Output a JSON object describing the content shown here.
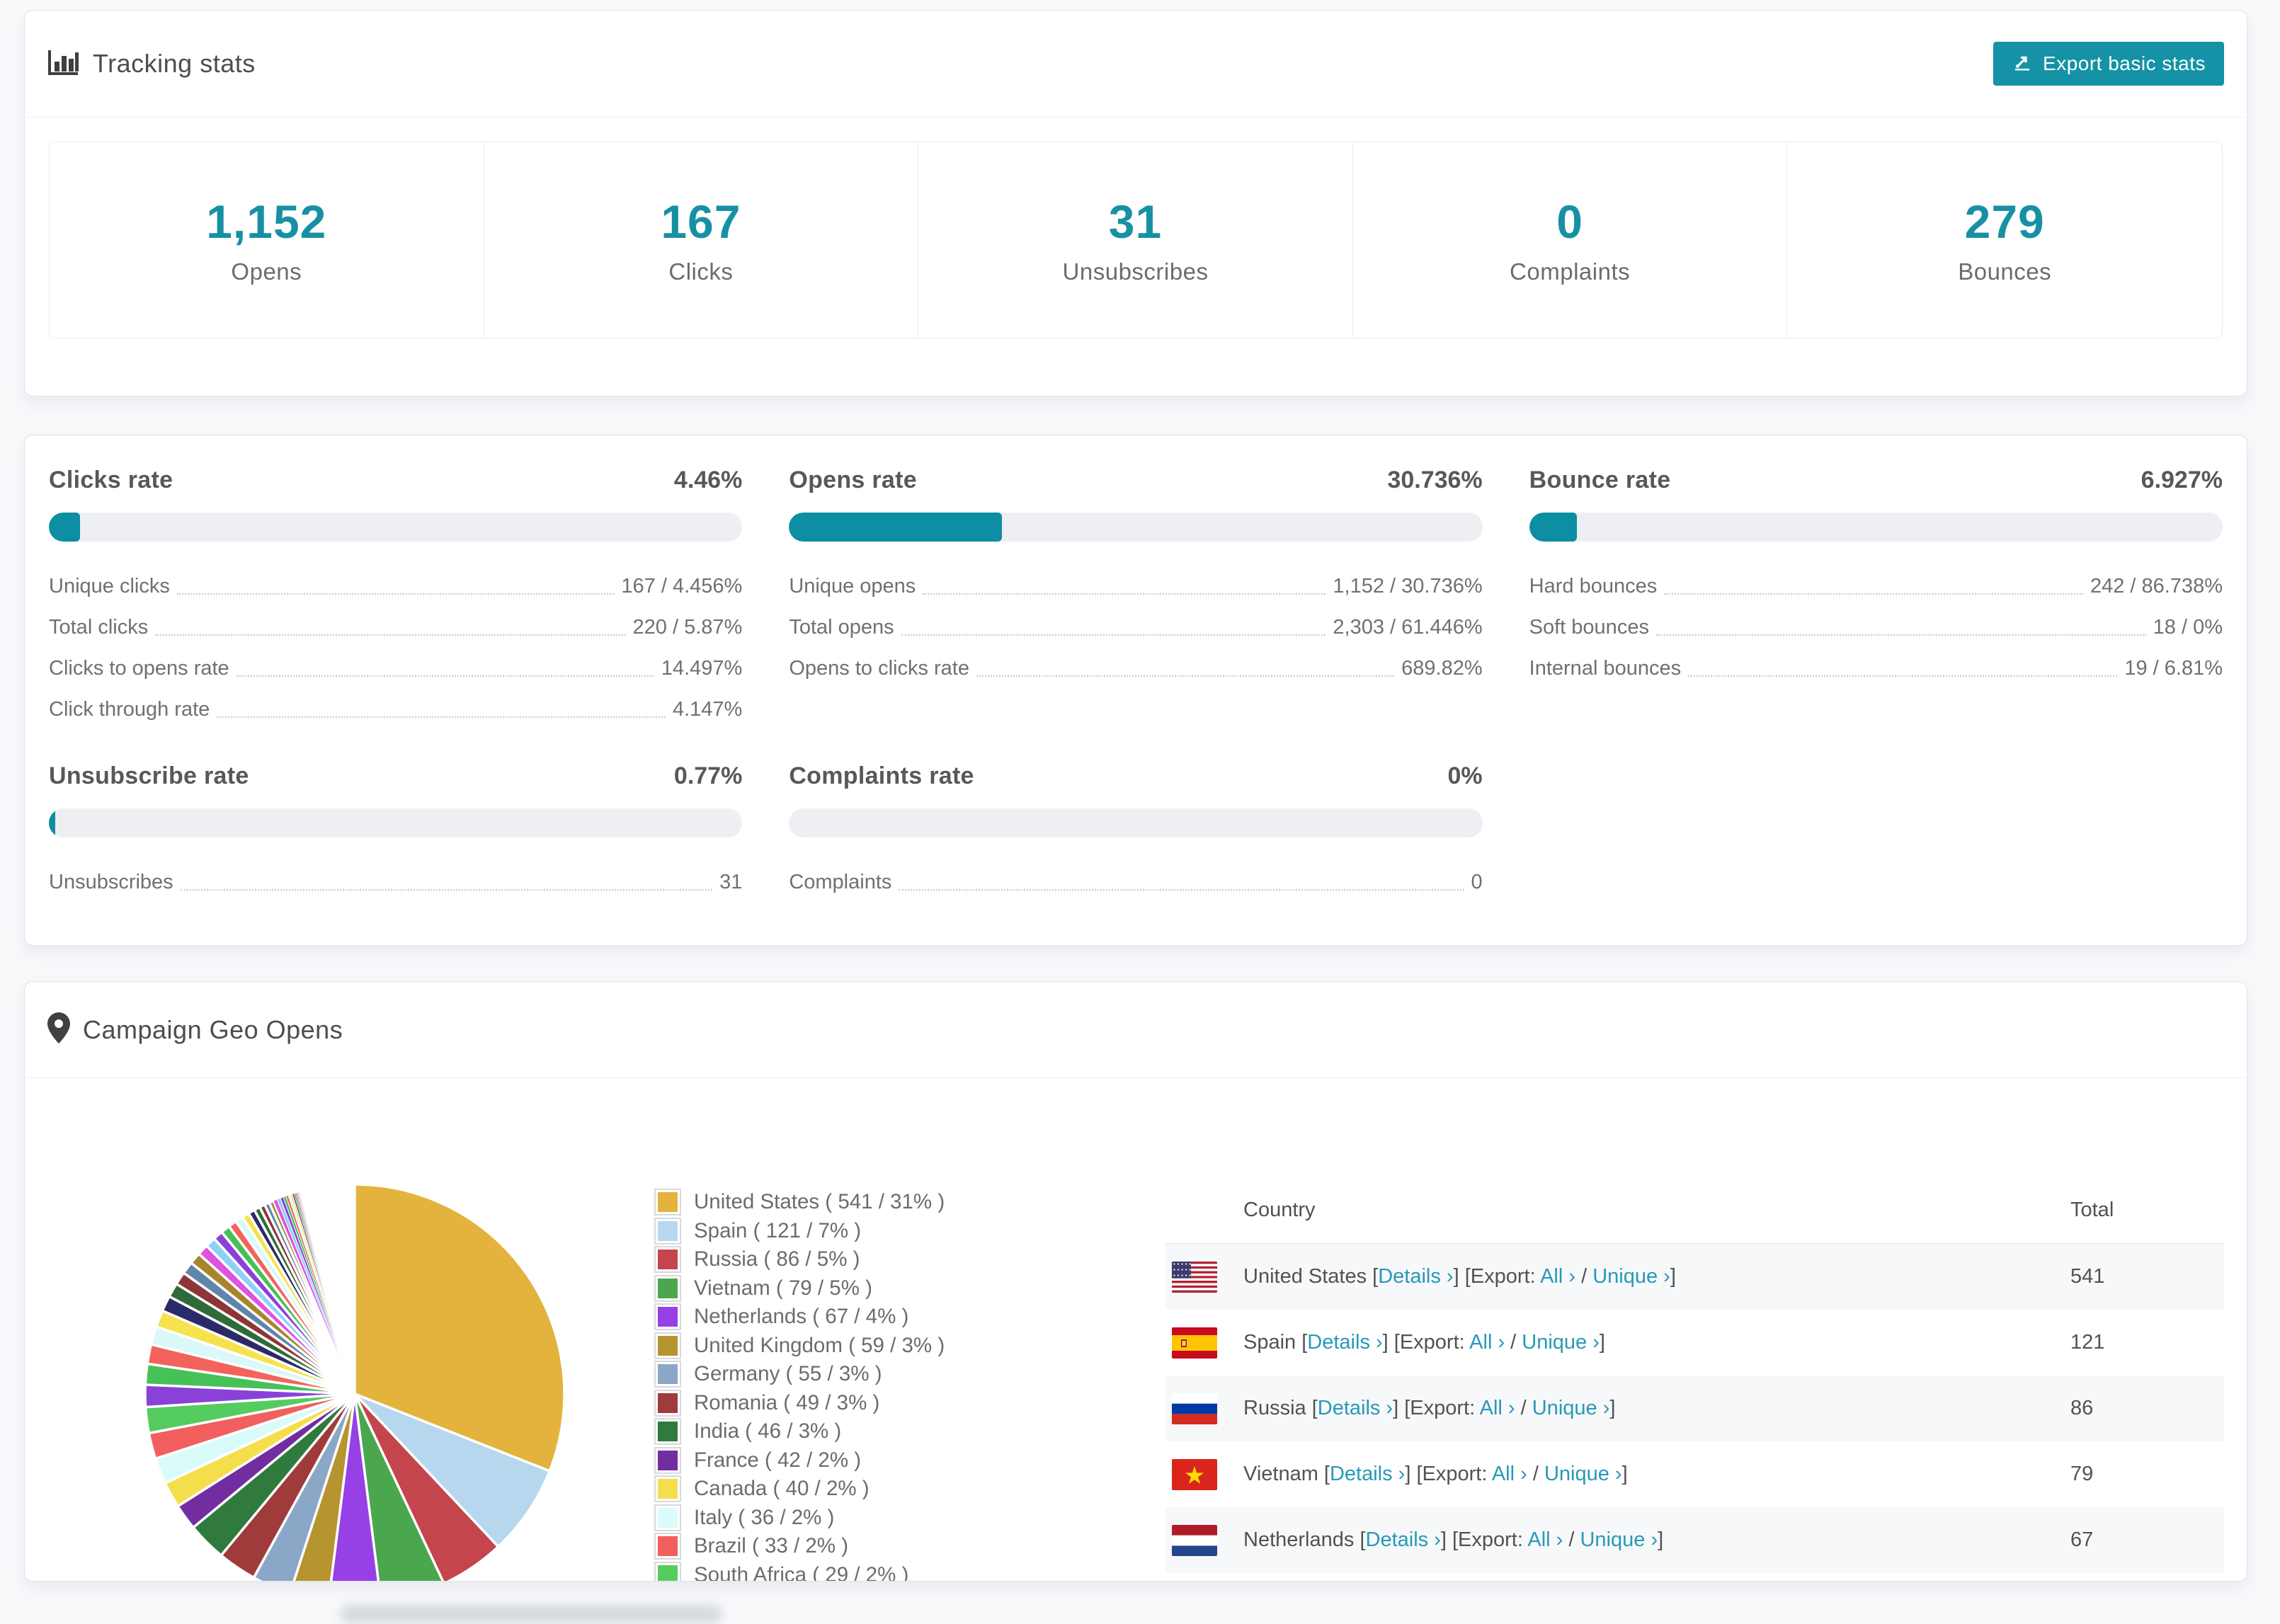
{
  "colors": {
    "accent_teal": "#1592a6",
    "number_teal": "#1790a4",
    "bar_fill": "#0d8ea2",
    "link_teal": "#2799b8",
    "bar_track": "#edeff2",
    "page_bg": "#f8f9fb"
  },
  "tracking": {
    "title": "Tracking stats",
    "export_button": "Export basic stats",
    "stats": [
      {
        "value": "1,152",
        "label": "Opens"
      },
      {
        "value": "167",
        "label": "Clicks"
      },
      {
        "value": "31",
        "label": "Unsubscribes"
      },
      {
        "value": "0",
        "label": "Complaints"
      },
      {
        "value": "279",
        "label": "Bounces"
      }
    ]
  },
  "rates": {
    "blocks": [
      {
        "title": "Clicks rate",
        "value": "4.46%",
        "bar_pct": 4.46,
        "rows": [
          {
            "label": "Unique clicks",
            "value": "167 / 4.456%"
          },
          {
            "label": "Total clicks",
            "value": "220 / 5.87%"
          },
          {
            "label": "Clicks to opens rate",
            "value": "14.497%"
          },
          {
            "label": "Click through rate",
            "value": "4.147%"
          }
        ]
      },
      {
        "title": "Opens rate",
        "value": "30.736%",
        "bar_pct": 30.736,
        "rows": [
          {
            "label": "Unique opens",
            "value": "1,152 / 30.736%"
          },
          {
            "label": "Total opens",
            "value": "2,303 / 61.446%"
          },
          {
            "label": "Opens to clicks rate",
            "value": "689.82%"
          }
        ]
      },
      {
        "title": "Bounce rate",
        "value": "6.927%",
        "bar_pct": 6.927,
        "rows": [
          {
            "label": "Hard bounces",
            "value": "242 / 86.738%"
          },
          {
            "label": "Soft bounces",
            "value": "18 / 0%"
          },
          {
            "label": "Internal bounces",
            "value": "19 / 6.81%"
          }
        ]
      },
      {
        "title": "Unsubscribe rate",
        "value": "0.77%",
        "bar_pct": 0.77,
        "rows": [
          {
            "label": "Unsubscribes",
            "value": "31"
          }
        ]
      },
      {
        "title": "Complaints rate",
        "value": "0%",
        "bar_pct": 0,
        "rows": [
          {
            "label": "Complaints",
            "value": "0"
          }
        ]
      }
    ]
  },
  "geo": {
    "title": "Campaign Geo Opens",
    "table": {
      "headers": {
        "country": "Country",
        "total": "Total"
      },
      "links": {
        "details": "Details ›",
        "export_label": "Export:",
        "all": "All ›",
        "unique": "Unique ›",
        "slash": "/"
      },
      "rows": [
        {
          "country": "United States",
          "flag": "us",
          "total": "541"
        },
        {
          "country": "Spain",
          "flag": "es",
          "total": "121"
        },
        {
          "country": "Russia",
          "flag": "ru",
          "total": "86"
        },
        {
          "country": "Vietnam",
          "flag": "vn",
          "total": "79"
        },
        {
          "country": "Netherlands",
          "flag": "nl",
          "total": "67"
        },
        {
          "country": "United Kingdom",
          "flag": "gb",
          "total": "59"
        },
        {
          "country": "Germany",
          "flag": "de",
          "total": "55"
        }
      ]
    }
  },
  "chart_data": {
    "type": "pie",
    "title": "Campaign Geo Opens",
    "unit": "opens",
    "start_angle": "top",
    "direction": "clockwise",
    "legend_position": "right",
    "series": [
      {
        "name": "United States",
        "value": 541,
        "pct": 31,
        "color": "#e3b33d"
      },
      {
        "name": "Spain",
        "value": 121,
        "pct": 7,
        "color": "#b7d7ef"
      },
      {
        "name": "Russia",
        "value": 86,
        "pct": 5,
        "color": "#c5454d"
      },
      {
        "name": "Vietnam",
        "value": 79,
        "pct": 5,
        "color": "#4aa74e"
      },
      {
        "name": "Netherlands",
        "value": 67,
        "pct": 4,
        "color": "#9640e6"
      },
      {
        "name": "United Kingdom",
        "value": 59,
        "pct": 3,
        "color": "#b6942f"
      },
      {
        "name": "Germany",
        "value": 55,
        "pct": 3,
        "color": "#8ba7c7"
      },
      {
        "name": "Romania",
        "value": 49,
        "pct": 3,
        "color": "#a03b3b"
      },
      {
        "name": "India",
        "value": 46,
        "pct": 3,
        "color": "#2f7a3c"
      },
      {
        "name": "France",
        "value": 42,
        "pct": 2,
        "color": "#722da0"
      },
      {
        "name": "Canada",
        "value": 40,
        "pct": 2,
        "color": "#f5de4b"
      },
      {
        "name": "Italy",
        "value": 36,
        "pct": 2,
        "color": "#d9fcfa"
      },
      {
        "name": "Brazil",
        "value": 33,
        "pct": 2,
        "color": "#f15f5f"
      },
      {
        "name": "South Africa",
        "value": 29,
        "pct": 2,
        "color": "#55cc60"
      }
    ],
    "others": {
      "note": "long tail of additional countries shown as shrinking unlabeled slices",
      "values": [
        1.7,
        1.6,
        1.5,
        1.4,
        1.3,
        1.2,
        1.1,
        1.0,
        0.95,
        0.9,
        0.85,
        0.8,
        0.75,
        0.7,
        0.65,
        0.6,
        0.55,
        0.5,
        0.46,
        0.42,
        0.38,
        0.34,
        0.3,
        0.27,
        0.24,
        0.21,
        0.19,
        0.17,
        0.15,
        0.13,
        0.11,
        0.1,
        0.09,
        0.08,
        0.07,
        0.06,
        0.05,
        0.05,
        0.04,
        0.04,
        0.03,
        0.03,
        0.02,
        0.02
      ],
      "palette": [
        "#8a41d8",
        "#45c157",
        "#f4625e",
        "#daf8f8",
        "#f6e24d",
        "#2b2a68",
        "#2f6b38",
        "#8e3538",
        "#5f86aa",
        "#a8842c",
        "#e052e0",
        "#8fd0f8"
      ]
    }
  }
}
